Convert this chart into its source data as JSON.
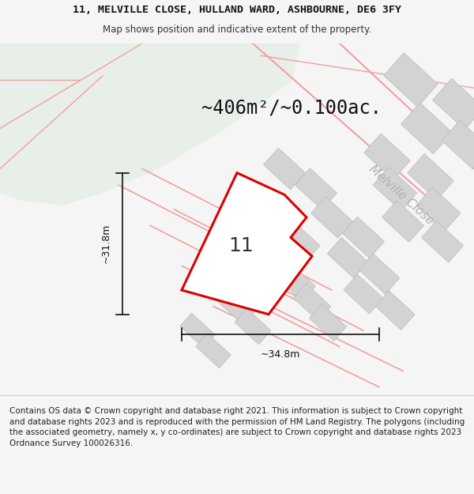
{
  "title_line1": "11, MELVILLE CLOSE, HULLAND WARD, ASHBOURNE, DE6 3FY",
  "title_line2": "Map shows position and indicative extent of the property.",
  "area_text": "~406m²/~0.100ac.",
  "dim_width": "~34.8m",
  "dim_height": "~31.8m",
  "plot_number": "11",
  "road_label": "Melville Close",
  "footer_text": "Contains OS data © Crown copyright and database right 2021. This information is subject to Crown copyright and database rights 2023 and is reproduced with the permission of HM Land Registry. The polygons (including the associated geometry, namely x, y co-ordinates) are subject to Crown copyright and database rights 2023 Ordnance Survey 100026316.",
  "bg_color": "#f5f5f5",
  "map_bg": "#ffffff",
  "green_area_color": "#e8efe8",
  "road_outline_color": "#f0a0a0",
  "building_color": "#d3d3d3",
  "building_edge_color": "#bbbbbb",
  "plot_fill": "#ffffff",
  "plot_color": "#dd0000",
  "dim_color": "#111111",
  "title_fontsize": 9.5,
  "subtitle_fontsize": 8.5,
  "area_fontsize": 17,
  "plot_number_fontsize": 18,
  "road_label_fontsize": 11,
  "footer_fontsize": 7.5
}
